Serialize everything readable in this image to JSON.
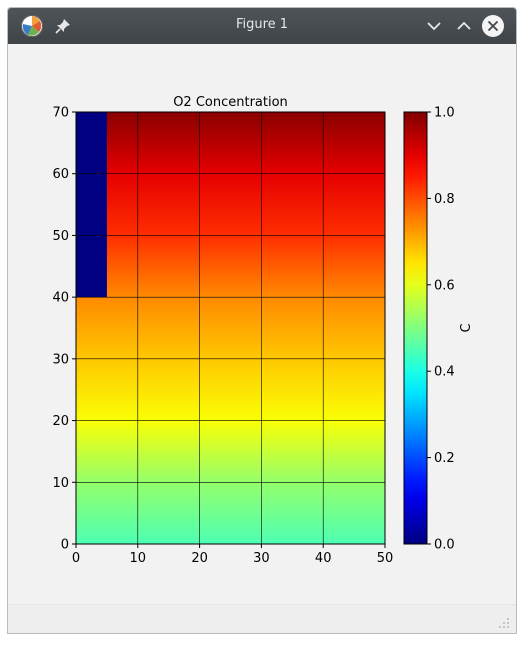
{
  "window": {
    "title": "Figure 1",
    "icons": {
      "app": "matplotlib-icon",
      "pin": "pin-icon",
      "minimize": "chevron-down-icon",
      "maximize": "chevron-up-icon",
      "close": "close-icon"
    }
  },
  "chart_data": {
    "type": "heatmap",
    "title": "O2 Concentration",
    "xlabel": "",
    "ylabel": "",
    "xlim": [
      0,
      50
    ],
    "ylim": [
      0,
      70
    ],
    "x_ticks": [
      0,
      10,
      20,
      30,
      40,
      50
    ],
    "y_ticks": [
      0,
      10,
      20,
      30,
      40,
      50,
      60,
      70
    ],
    "grid": true,
    "colormap": "jet",
    "zero_region": {
      "x": [
        0,
        5
      ],
      "y": [
        40,
        70
      ],
      "value": 0.0
    },
    "value_profile": [
      {
        "y": 0,
        "c": 0.45
      },
      {
        "y": 10,
        "c": 0.52
      },
      {
        "y": 20,
        "c": 0.62
      },
      {
        "y": 30,
        "c": 0.68
      },
      {
        "y": 40,
        "c": 0.74
      },
      {
        "y": 50,
        "c": 0.83
      },
      {
        "y": 60,
        "c": 0.9
      },
      {
        "y": 70,
        "c": 0.99
      }
    ],
    "colorbar": {
      "label": "C",
      "range": [
        0.0,
        1.0
      ],
      "ticks": [
        "0.0",
        "0.2",
        "0.4",
        "0.6",
        "0.8",
        "1.0"
      ]
    }
  }
}
